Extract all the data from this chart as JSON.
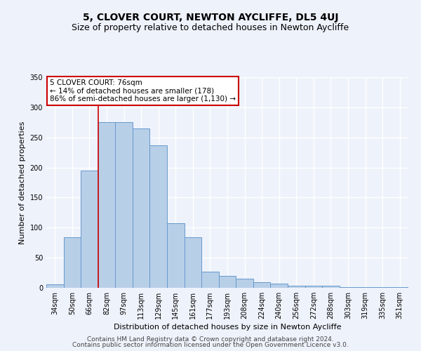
{
  "title": "5, CLOVER COURT, NEWTON AYCLIFFE, DL5 4UJ",
  "subtitle": "Size of property relative to detached houses in Newton Aycliffe",
  "xlabel": "Distribution of detached houses by size in Newton Aycliffe",
  "ylabel": "Number of detached properties",
  "categories": [
    "34sqm",
    "50sqm",
    "66sqm",
    "82sqm",
    "97sqm",
    "113sqm",
    "129sqm",
    "145sqm",
    "161sqm",
    "177sqm",
    "193sqm",
    "208sqm",
    "224sqm",
    "240sqm",
    "256sqm",
    "272sqm",
    "288sqm",
    "303sqm",
    "319sqm",
    "335sqm",
    "351sqm"
  ],
  "values": [
    6,
    84,
    195,
    275,
    275,
    265,
    237,
    107,
    84,
    27,
    20,
    15,
    9,
    7,
    3,
    3,
    3,
    1,
    1,
    1,
    1
  ],
  "bar_color": "#b8cfe8",
  "bar_edge_color": "#6699cc",
  "vline_x": 2.5,
  "vline_color": "#cc0000",
  "annotation_text": "5 CLOVER COURT: 76sqm\n← 14% of detached houses are smaller (178)\n86% of semi-detached houses are larger (1,130) →",
  "annotation_box_color": "#ffffff",
  "annotation_box_edge": "#cc0000",
  "ylim": [
    0,
    350
  ],
  "yticks": [
    0,
    50,
    100,
    150,
    200,
    250,
    300,
    350
  ],
  "footer1": "Contains HM Land Registry data © Crown copyright and database right 2024.",
  "footer2": "Contains public sector information licensed under the Open Government Licence v3.0.",
  "background_color": "#eef2fb",
  "grid_color": "#ffffff",
  "title_fontsize": 10,
  "subtitle_fontsize": 9,
  "label_fontsize": 8,
  "tick_fontsize": 7,
  "annot_fontsize": 7.5,
  "footer_fontsize": 6.5
}
